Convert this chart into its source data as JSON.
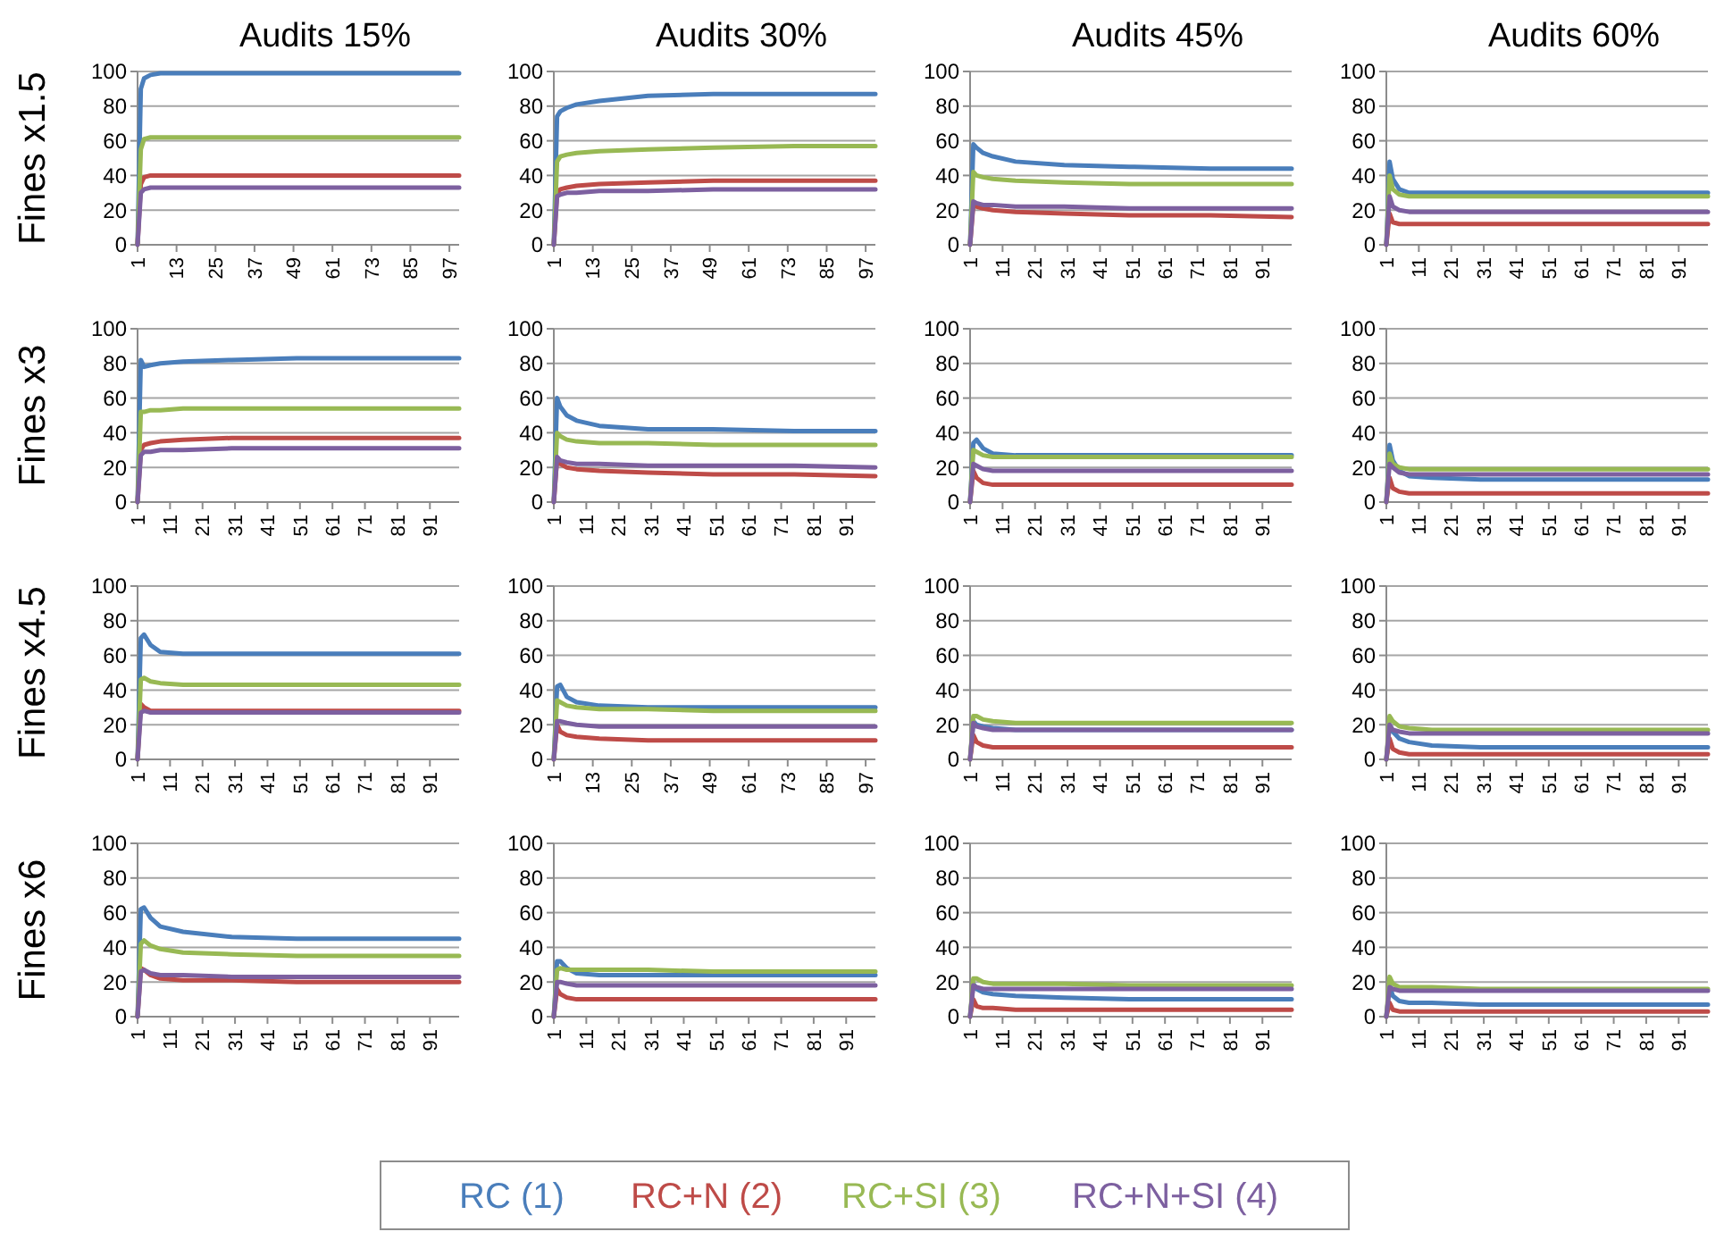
{
  "chart_data": [
    {
      "type": "line",
      "title": "Audits 15%",
      "ylabel": "Fines x1.5",
      "x": [
        1,
        2,
        3,
        5,
        8,
        15,
        30,
        50,
        75,
        100
      ],
      "xlim": [
        1,
        100
      ],
      "xticks": [
        1,
        13,
        25,
        37,
        49,
        61,
        73,
        85,
        97
      ],
      "ylim": [
        0,
        100
      ],
      "yticks": [
        0,
        20,
        40,
        60,
        80,
        100
      ],
      "grid": "y",
      "series": [
        {
          "color": "#4a7ebb",
          "values": [
            0,
            90,
            96,
            98,
            99,
            99,
            99,
            99,
            99,
            99
          ]
        },
        {
          "color": "#be4b48",
          "values": [
            0,
            35,
            39,
            40,
            40,
            40,
            40,
            40,
            40,
            40
          ]
        },
        {
          "color": "#98b954",
          "values": [
            0,
            55,
            61,
            62,
            62,
            62,
            62,
            62,
            62,
            62
          ]
        },
        {
          "color": "#7d60a0",
          "values": [
            0,
            30,
            32,
            33,
            33,
            33,
            33,
            33,
            33,
            33
          ]
        }
      ]
    },
    {
      "type": "line",
      "title": "Audits 30%",
      "x": [
        1,
        2,
        3,
        5,
        8,
        15,
        30,
        50,
        75,
        100
      ],
      "xlim": [
        1,
        100
      ],
      "xticks": [
        1,
        13,
        25,
        37,
        49,
        61,
        73,
        85,
        97
      ],
      "ylim": [
        0,
        100
      ],
      "yticks": [
        0,
        20,
        40,
        60,
        80,
        100
      ],
      "grid": "y",
      "series": [
        {
          "color": "#4a7ebb",
          "values": [
            0,
            74,
            77,
            79,
            81,
            83,
            86,
            87,
            87,
            87
          ]
        },
        {
          "color": "#be4b48",
          "values": [
            0,
            30,
            32,
            33,
            34,
            35,
            36,
            37,
            37,
            37
          ]
        },
        {
          "color": "#98b954",
          "values": [
            0,
            48,
            51,
            52,
            53,
            54,
            55,
            56,
            57,
            57
          ]
        },
        {
          "color": "#7d60a0",
          "values": [
            0,
            28,
            29,
            30,
            30,
            31,
            31,
            32,
            32,
            32
          ]
        }
      ]
    },
    {
      "type": "line",
      "title": "Audits 45%",
      "x": [
        1,
        2,
        3,
        5,
        8,
        15,
        30,
        50,
        75,
        100
      ],
      "xlim": [
        1,
        100
      ],
      "xticks": [
        1,
        11,
        21,
        31,
        41,
        51,
        61,
        71,
        81,
        91
      ],
      "ylim": [
        0,
        100
      ],
      "yticks": [
        0,
        20,
        40,
        60,
        80,
        100
      ],
      "grid": "y",
      "series": [
        {
          "color": "#4a7ebb",
          "values": [
            0,
            58,
            56,
            53,
            51,
            48,
            46,
            45,
            44,
            44
          ]
        },
        {
          "color": "#be4b48",
          "values": [
            0,
            23,
            22,
            21,
            20,
            19,
            18,
            17,
            17,
            16
          ]
        },
        {
          "color": "#98b954",
          "values": [
            0,
            42,
            40,
            39,
            38,
            37,
            36,
            35,
            35,
            35
          ]
        },
        {
          "color": "#7d60a0",
          "values": [
            0,
            25,
            24,
            23,
            23,
            22,
            22,
            21,
            21,
            21
          ]
        }
      ]
    },
    {
      "type": "line",
      "title": "Audits 60%",
      "x": [
        1,
        2,
        3,
        5,
        8,
        15,
        30,
        50,
        75,
        100
      ],
      "xlim": [
        1,
        100
      ],
      "xticks": [
        1,
        11,
        21,
        31,
        41,
        51,
        61,
        71,
        81,
        91
      ],
      "ylim": [
        0,
        100
      ],
      "yticks": [
        0,
        20,
        40,
        60,
        80,
        100
      ],
      "grid": "y",
      "series": [
        {
          "color": "#4a7ebb",
          "values": [
            0,
            48,
            38,
            32,
            30,
            30,
            30,
            30,
            30,
            30
          ]
        },
        {
          "color": "#be4b48",
          "values": [
            0,
            18,
            13,
            12,
            12,
            12,
            12,
            12,
            12,
            12
          ]
        },
        {
          "color": "#98b954",
          "values": [
            0,
            40,
            32,
            29,
            28,
            28,
            28,
            28,
            28,
            28
          ]
        },
        {
          "color": "#7d60a0",
          "values": [
            0,
            28,
            22,
            20,
            19,
            19,
            19,
            19,
            19,
            19
          ]
        }
      ]
    },
    {
      "type": "line",
      "ylabel": "Fines x3",
      "x": [
        1,
        2,
        3,
        5,
        8,
        15,
        30,
        50,
        75,
        100
      ],
      "xlim": [
        1,
        100
      ],
      "xticks": [
        1,
        11,
        21,
        31,
        41,
        51,
        61,
        71,
        81,
        91
      ],
      "ylim": [
        0,
        100
      ],
      "yticks": [
        0,
        20,
        40,
        60,
        80,
        100
      ],
      "grid": "y",
      "series": [
        {
          "color": "#4a7ebb",
          "values": [
            0,
            82,
            78,
            79,
            80,
            81,
            82,
            83,
            83,
            83
          ]
        },
        {
          "color": "#be4b48",
          "values": [
            0,
            30,
            33,
            34,
            35,
            36,
            37,
            37,
            37,
            37
          ]
        },
        {
          "color": "#98b954",
          "values": [
            0,
            52,
            52,
            53,
            53,
            54,
            54,
            54,
            54,
            54
          ]
        },
        {
          "color": "#7d60a0",
          "values": [
            0,
            27,
            29,
            29,
            30,
            30,
            31,
            31,
            31,
            31
          ]
        }
      ]
    },
    {
      "type": "line",
      "x": [
        1,
        2,
        3,
        5,
        8,
        15,
        30,
        50,
        75,
        100
      ],
      "xlim": [
        1,
        100
      ],
      "xticks": [
        1,
        11,
        21,
        31,
        41,
        51,
        61,
        71,
        81,
        91
      ],
      "ylim": [
        0,
        100
      ],
      "yticks": [
        0,
        20,
        40,
        60,
        80,
        100
      ],
      "grid": "y",
      "series": [
        {
          "color": "#4a7ebb",
          "values": [
            0,
            60,
            55,
            50,
            47,
            44,
            42,
            42,
            41,
            41
          ]
        },
        {
          "color": "#be4b48",
          "values": [
            0,
            25,
            22,
            20,
            19,
            18,
            17,
            16,
            16,
            15
          ]
        },
        {
          "color": "#98b954",
          "values": [
            0,
            40,
            38,
            36,
            35,
            34,
            34,
            33,
            33,
            33
          ]
        },
        {
          "color": "#7d60a0",
          "values": [
            0,
            26,
            24,
            23,
            22,
            22,
            21,
            21,
            21,
            20
          ]
        }
      ]
    },
    {
      "type": "line",
      "x": [
        1,
        2,
        3,
        5,
        8,
        15,
        30,
        50,
        75,
        100
      ],
      "xlim": [
        1,
        100
      ],
      "xticks": [
        1,
        11,
        21,
        31,
        41,
        51,
        61,
        71,
        81,
        91
      ],
      "ylim": [
        0,
        100
      ],
      "yticks": [
        0,
        20,
        40,
        60,
        80,
        100
      ],
      "grid": "y",
      "series": [
        {
          "color": "#4a7ebb",
          "values": [
            0,
            34,
            36,
            31,
            28,
            27,
            27,
            27,
            27,
            27
          ]
        },
        {
          "color": "#be4b48",
          "values": [
            0,
            18,
            14,
            11,
            10,
            10,
            10,
            10,
            10,
            10
          ]
        },
        {
          "color": "#98b954",
          "values": [
            0,
            30,
            29,
            27,
            26,
            26,
            26,
            26,
            26,
            26
          ]
        },
        {
          "color": "#7d60a0",
          "values": [
            0,
            22,
            21,
            19,
            18,
            18,
            18,
            18,
            18,
            18
          ]
        }
      ]
    },
    {
      "type": "line",
      "x": [
        1,
        2,
        3,
        5,
        8,
        15,
        30,
        50,
        75,
        100
      ],
      "xlim": [
        1,
        100
      ],
      "xticks": [
        1,
        11,
        21,
        31,
        41,
        51,
        61,
        71,
        81,
        91
      ],
      "ylim": [
        0,
        100
      ],
      "yticks": [
        0,
        20,
        40,
        60,
        80,
        100
      ],
      "grid": "y",
      "series": [
        {
          "color": "#4a7ebb",
          "values": [
            0,
            33,
            24,
            18,
            15,
            14,
            13,
            13,
            13,
            13
          ]
        },
        {
          "color": "#be4b48",
          "values": [
            0,
            14,
            8,
            6,
            5,
            5,
            5,
            5,
            5,
            5
          ]
        },
        {
          "color": "#98b954",
          "values": [
            0,
            28,
            22,
            20,
            19,
            19,
            19,
            19,
            19,
            19
          ]
        },
        {
          "color": "#7d60a0",
          "values": [
            0,
            22,
            20,
            17,
            16,
            16,
            16,
            16,
            16,
            16
          ]
        }
      ]
    },
    {
      "type": "line",
      "ylabel": "Fines x4.5",
      "x": [
        1,
        2,
        3,
        5,
        8,
        15,
        30,
        50,
        75,
        100
      ],
      "xlim": [
        1,
        100
      ],
      "xticks": [
        1,
        11,
        21,
        31,
        41,
        51,
        61,
        71,
        81,
        91
      ],
      "ylim": [
        0,
        100
      ],
      "yticks": [
        0,
        20,
        40,
        60,
        80,
        100
      ],
      "grid": "y",
      "series": [
        {
          "color": "#4a7ebb",
          "values": [
            0,
            70,
            72,
            66,
            62,
            61,
            61,
            61,
            61,
            61
          ]
        },
        {
          "color": "#be4b48",
          "values": [
            0,
            32,
            30,
            28,
            28,
            28,
            28,
            28,
            28,
            28
          ]
        },
        {
          "color": "#98b954",
          "values": [
            0,
            46,
            47,
            45,
            44,
            43,
            43,
            43,
            43,
            43
          ]
        },
        {
          "color": "#7d60a0",
          "values": [
            0,
            27,
            28,
            27,
            27,
            27,
            27,
            27,
            27,
            27
          ]
        }
      ]
    },
    {
      "type": "line",
      "x": [
        1,
        2,
        3,
        5,
        8,
        15,
        30,
        50,
        75,
        100
      ],
      "xlim": [
        1,
        100
      ],
      "xticks": [
        1,
        13,
        25,
        37,
        49,
        61,
        73,
        85,
        97
      ],
      "ylim": [
        0,
        100
      ],
      "yticks": [
        0,
        20,
        40,
        60,
        80,
        100
      ],
      "grid": "y",
      "series": [
        {
          "color": "#4a7ebb",
          "values": [
            0,
            42,
            43,
            36,
            33,
            31,
            30,
            30,
            30,
            30
          ]
        },
        {
          "color": "#be4b48",
          "values": [
            0,
            20,
            16,
            14,
            13,
            12,
            11,
            11,
            11,
            11
          ]
        },
        {
          "color": "#98b954",
          "values": [
            0,
            34,
            33,
            31,
            30,
            29,
            29,
            28,
            28,
            28
          ]
        },
        {
          "color": "#7d60a0",
          "values": [
            0,
            22,
            22,
            21,
            20,
            19,
            19,
            19,
            19,
            19
          ]
        }
      ]
    },
    {
      "type": "line",
      "x": [
        1,
        2,
        3,
        5,
        8,
        15,
        30,
        50,
        75,
        100
      ],
      "xlim": [
        1,
        100
      ],
      "xticks": [
        1,
        11,
        21,
        31,
        41,
        51,
        61,
        71,
        81,
        91
      ],
      "ylim": [
        0,
        100
      ],
      "yticks": [
        0,
        20,
        40,
        60,
        80,
        100
      ],
      "grid": "y",
      "series": [
        {
          "color": "#4a7ebb",
          "values": [
            0,
            22,
            20,
            19,
            18,
            17,
            17,
            17,
            17,
            17
          ]
        },
        {
          "color": "#be4b48",
          "values": [
            0,
            14,
            10,
            8,
            7,
            7,
            7,
            7,
            7,
            7
          ]
        },
        {
          "color": "#98b954",
          "values": [
            0,
            25,
            25,
            23,
            22,
            21,
            21,
            21,
            21,
            21
          ]
        },
        {
          "color": "#7d60a0",
          "values": [
            0,
            21,
            19,
            18,
            17,
            17,
            17,
            17,
            17,
            17
          ]
        }
      ]
    },
    {
      "type": "line",
      "x": [
        1,
        2,
        3,
        5,
        8,
        15,
        30,
        50,
        75,
        100
      ],
      "xlim": [
        1,
        100
      ],
      "xticks": [
        1,
        11,
        21,
        31,
        41,
        51,
        61,
        71,
        81,
        91
      ],
      "ylim": [
        0,
        100
      ],
      "yticks": [
        0,
        20,
        40,
        60,
        80,
        100
      ],
      "grid": "y",
      "series": [
        {
          "color": "#4a7ebb",
          "values": [
            0,
            20,
            16,
            12,
            10,
            8,
            7,
            7,
            7,
            7
          ]
        },
        {
          "color": "#be4b48",
          "values": [
            0,
            12,
            6,
            4,
            3,
            3,
            3,
            3,
            3,
            3
          ]
        },
        {
          "color": "#98b954",
          "values": [
            0,
            25,
            22,
            19,
            18,
            17,
            17,
            17,
            17,
            17
          ]
        },
        {
          "color": "#7d60a0",
          "values": [
            0,
            20,
            17,
            16,
            15,
            15,
            15,
            15,
            15,
            15
          ]
        }
      ]
    },
    {
      "type": "line",
      "ylabel": "Fines x6",
      "x": [
        1,
        2,
        3,
        5,
        8,
        15,
        30,
        50,
        75,
        100
      ],
      "xlim": [
        1,
        100
      ],
      "xticks": [
        1,
        11,
        21,
        31,
        41,
        51,
        61,
        71,
        81,
        91
      ],
      "ylim": [
        0,
        100
      ],
      "yticks": [
        0,
        20,
        40,
        60,
        80,
        100
      ],
      "grid": "y",
      "series": [
        {
          "color": "#4a7ebb",
          "values": [
            0,
            62,
            63,
            57,
            52,
            49,
            46,
            45,
            45,
            45
          ]
        },
        {
          "color": "#be4b48",
          "values": [
            0,
            28,
            27,
            24,
            22,
            21,
            21,
            20,
            20,
            20
          ]
        },
        {
          "color": "#98b954",
          "values": [
            0,
            42,
            44,
            41,
            39,
            37,
            36,
            35,
            35,
            35
          ]
        },
        {
          "color": "#7d60a0",
          "values": [
            0,
            26,
            27,
            25,
            24,
            24,
            23,
            23,
            23,
            23
          ]
        }
      ]
    },
    {
      "type": "line",
      "x": [
        1,
        2,
        3,
        5,
        8,
        15,
        30,
        50,
        75,
        100
      ],
      "xlim": [
        1,
        100
      ],
      "xticks": [
        1,
        11,
        21,
        31,
        41,
        51,
        61,
        71,
        81,
        91
      ],
      "ylim": [
        0,
        100
      ],
      "yticks": [
        0,
        20,
        40,
        60,
        80,
        100
      ],
      "grid": "y",
      "series": [
        {
          "color": "#4a7ebb",
          "values": [
            0,
            32,
            32,
            28,
            25,
            24,
            24,
            24,
            24,
            24
          ]
        },
        {
          "color": "#be4b48",
          "values": [
            0,
            16,
            13,
            11,
            10,
            10,
            10,
            10,
            10,
            10
          ]
        },
        {
          "color": "#98b954",
          "values": [
            0,
            27,
            28,
            27,
            27,
            27,
            27,
            26,
            26,
            26
          ]
        },
        {
          "color": "#7d60a0",
          "values": [
            0,
            20,
            20,
            19,
            18,
            18,
            18,
            18,
            18,
            18
          ]
        }
      ]
    },
    {
      "type": "line",
      "x": [
        1,
        2,
        3,
        5,
        8,
        15,
        30,
        50,
        75,
        100
      ],
      "xlim": [
        1,
        100
      ],
      "xticks": [
        1,
        11,
        21,
        31,
        41,
        51,
        61,
        71,
        81,
        91
      ],
      "ylim": [
        0,
        100
      ],
      "yticks": [
        0,
        20,
        40,
        60,
        80,
        100
      ],
      "grid": "y",
      "series": [
        {
          "color": "#4a7ebb",
          "values": [
            0,
            19,
            16,
            14,
            13,
            12,
            11,
            10,
            10,
            10
          ]
        },
        {
          "color": "#be4b48",
          "values": [
            0,
            10,
            6,
            5,
            5,
            4,
            4,
            4,
            4,
            4
          ]
        },
        {
          "color": "#98b954",
          "values": [
            0,
            22,
            22,
            20,
            19,
            19,
            19,
            18,
            18,
            18
          ]
        },
        {
          "color": "#7d60a0",
          "values": [
            0,
            18,
            17,
            16,
            16,
            16,
            16,
            16,
            16,
            16
          ]
        }
      ]
    },
    {
      "type": "line",
      "legend": "bottom",
      "x": [
        1,
        2,
        3,
        5,
        8,
        15,
        30,
        50,
        75,
        100
      ],
      "xlim": [
        1,
        100
      ],
      "xticks": [
        1,
        11,
        21,
        31,
        41,
        51,
        61,
        71,
        81,
        91
      ],
      "ylim": [
        0,
        100
      ],
      "yticks": [
        0,
        20,
        40,
        60,
        80,
        100
      ],
      "grid": "y",
      "series": [
        {
          "name": "RC (1)",
          "color": "#4a7ebb",
          "values": [
            0,
            18,
            12,
            9,
            8,
            8,
            7,
            7,
            7,
            7
          ]
        },
        {
          "name": "RC+N (2)",
          "color": "#be4b48",
          "values": [
            0,
            8,
            4,
            3,
            3,
            3,
            3,
            3,
            3,
            3
          ]
        },
        {
          "name": "RC+SI (3)",
          "color": "#98b954",
          "values": [
            0,
            23,
            19,
            17,
            17,
            17,
            16,
            16,
            16,
            16
          ]
        },
        {
          "name": "RC+N+SI (4)",
          "color": "#7d60a0",
          "values": [
            0,
            17,
            16,
            15,
            15,
            15,
            15,
            15,
            15,
            15
          ]
        }
      ]
    }
  ]
}
